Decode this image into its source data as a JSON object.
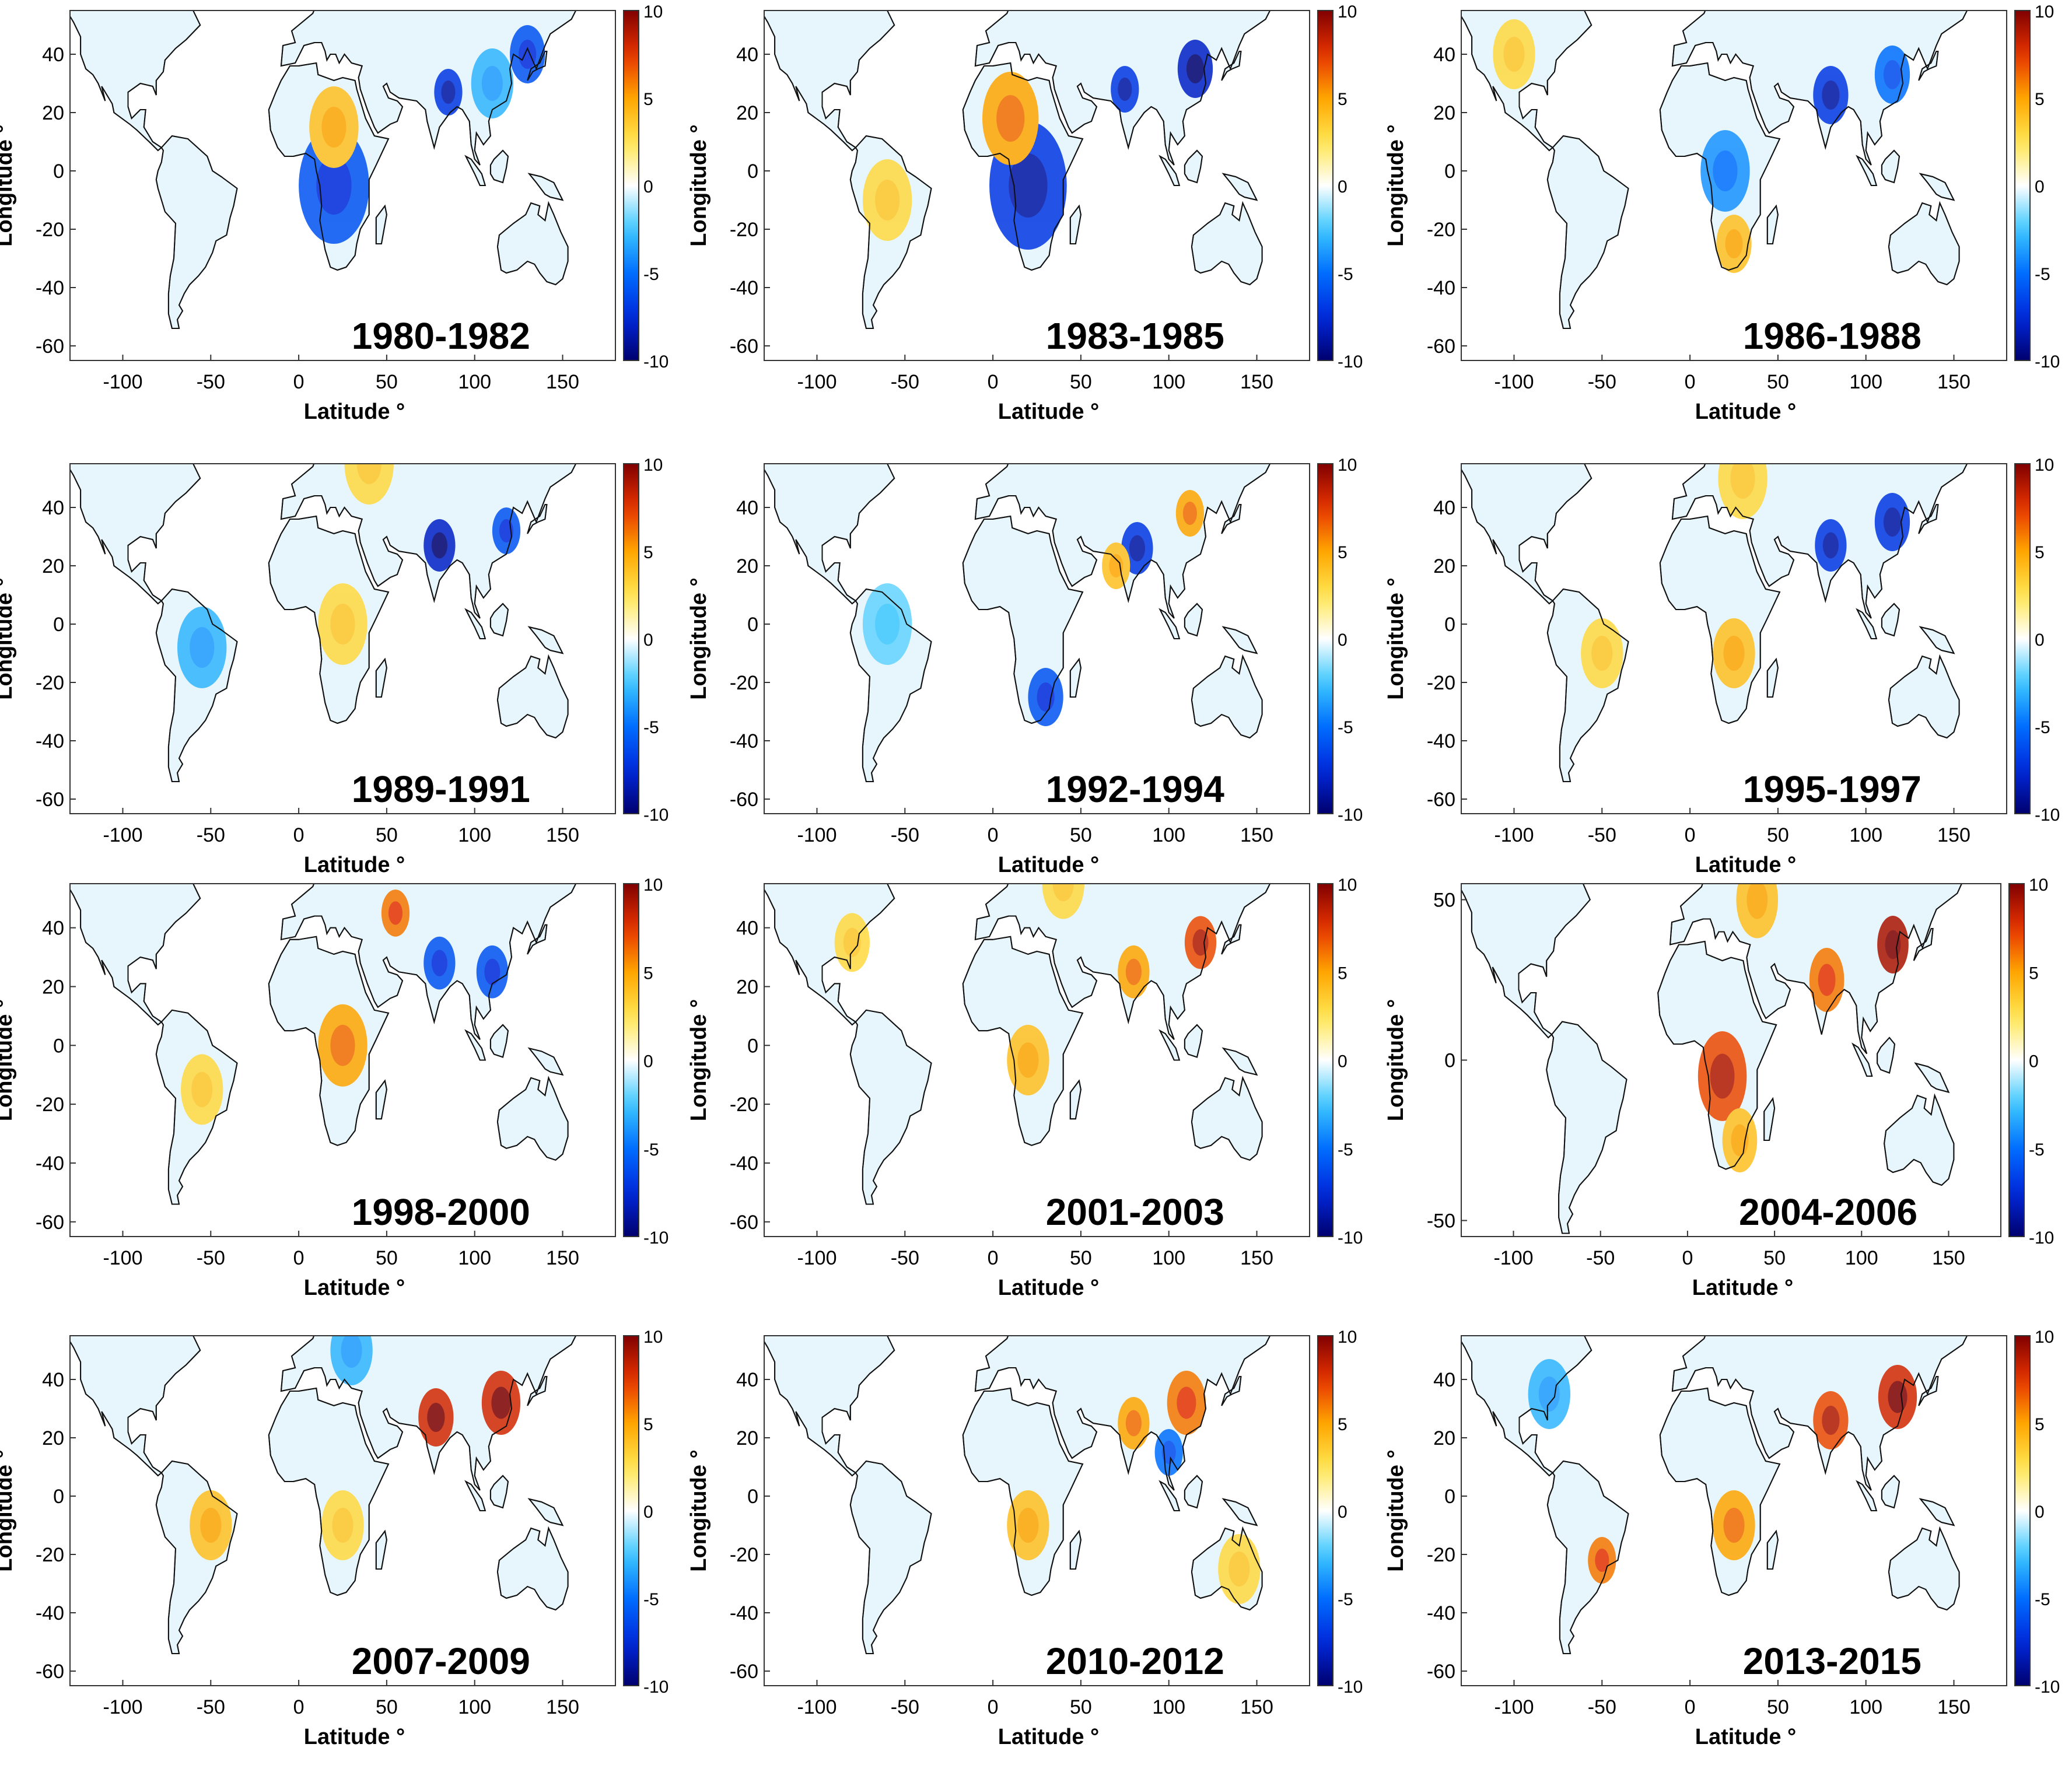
{
  "figure": {
    "xlabel": "Latitude °",
    "ylabel": "Longitude °"
  },
  "chart_data": [
    {
      "type": "heatmap",
      "title": "1980-1982",
      "xlabel": "Latitude °",
      "ylabel": "Longitude °",
      "xlim": [
        -130,
        180
      ],
      "ylim": [
        -65,
        55
      ],
      "xticks": [
        -100,
        -50,
        0,
        50,
        100,
        150
      ],
      "yticks": [
        40,
        20,
        0,
        -20,
        -40,
        -60
      ],
      "colorbar": {
        "min": -10,
        "max": 10,
        "ticks": [
          10,
          5,
          0,
          -5,
          -10
        ]
      },
      "hotspots": [
        {
          "lon": 20,
          "lat": -5,
          "r": 20,
          "v": -6
        },
        {
          "lon": 85,
          "lat": 27,
          "r": 8,
          "v": -7
        },
        {
          "lon": 130,
          "lat": 40,
          "r": 10,
          "v": -6
        },
        {
          "lon": 20,
          "lat": 15,
          "r": 14,
          "v": 4
        },
        {
          "lon": 110,
          "lat": 30,
          "r": 12,
          "v": -3
        }
      ]
    },
    {
      "type": "heatmap",
      "title": "1983-1985",
      "xlabel": "Latitude °",
      "ylabel": "Longitude °",
      "xlim": [
        -130,
        180
      ],
      "ylim": [
        -65,
        55
      ],
      "xticks": [
        -100,
        -50,
        0,
        50,
        100,
        150
      ],
      "yticks": [
        40,
        20,
        0,
        -20,
        -40,
        -60
      ],
      "colorbar": {
        "min": -10,
        "max": 10,
        "ticks": [
          10,
          5,
          0,
          -5,
          -10
        ]
      },
      "hotspots": [
        {
          "lon": 20,
          "lat": -5,
          "r": 22,
          "v": -7
        },
        {
          "lon": 115,
          "lat": 35,
          "r": 10,
          "v": -8
        },
        {
          "lon": 75,
          "lat": 28,
          "r": 8,
          "v": -7
        },
        {
          "lon": 10,
          "lat": 18,
          "r": 16,
          "v": 5
        },
        {
          "lon": -60,
          "lat": -10,
          "r": 14,
          "v": 3
        }
      ]
    },
    {
      "type": "heatmap",
      "title": "1986-1988",
      "xlabel": "Latitude °",
      "ylabel": "Longitude °",
      "xlim": [
        -130,
        180
      ],
      "ylim": [
        -65,
        55
      ],
      "xticks": [
        -100,
        -50,
        0,
        50,
        100,
        150
      ],
      "yticks": [
        40,
        20,
        0,
        -20,
        -40,
        -60
      ],
      "colorbar": {
        "min": -10,
        "max": 10,
        "ticks": [
          10,
          5,
          0,
          -5,
          -10
        ]
      },
      "hotspots": [
        {
          "lon": 80,
          "lat": 26,
          "r": 10,
          "v": -7
        },
        {
          "lon": 115,
          "lat": 33,
          "r": 10,
          "v": -5
        },
        {
          "lon": 25,
          "lat": -25,
          "r": 10,
          "v": 4
        },
        {
          "lon": 20,
          "lat": 0,
          "r": 14,
          "v": -4
        },
        {
          "lon": -100,
          "lat": 40,
          "r": 12,
          "v": 3
        }
      ]
    },
    {
      "type": "heatmap",
      "title": "1989-1991",
      "xlabel": "Latitude °",
      "ylabel": "Longitude °",
      "xlim": [
        -130,
        180
      ],
      "ylim": [
        -65,
        55
      ],
      "xticks": [
        -100,
        -50,
        0,
        50,
        100,
        150
      ],
      "yticks": [
        40,
        20,
        0,
        -20,
        -40,
        -60
      ],
      "colorbar": {
        "min": -10,
        "max": 10,
        "ticks": [
          10,
          5,
          0,
          -5,
          -10
        ]
      },
      "hotspots": [
        {
          "lon": 80,
          "lat": 27,
          "r": 9,
          "v": -8
        },
        {
          "lon": 118,
          "lat": 32,
          "r": 8,
          "v": -6
        },
        {
          "lon": 25,
          "lat": 0,
          "r": 14,
          "v": 3
        },
        {
          "lon": -55,
          "lat": -8,
          "r": 14,
          "v": -3
        },
        {
          "lon": 40,
          "lat": 55,
          "r": 14,
          "v": 3
        }
      ]
    },
    {
      "type": "heatmap",
      "title": "1992-1994",
      "xlabel": "Latitude °",
      "ylabel": "Longitude °",
      "xlim": [
        -130,
        180
      ],
      "ylim": [
        -65,
        55
      ],
      "xticks": [
        -100,
        -50,
        0,
        50,
        100,
        150
      ],
      "yticks": [
        40,
        20,
        0,
        -20,
        -40,
        -60
      ],
      "colorbar": {
        "min": -10,
        "max": 10,
        "ticks": [
          10,
          5,
          0,
          -5,
          -10
        ]
      },
      "hotspots": [
        {
          "lon": 82,
          "lat": 26,
          "r": 9,
          "v": -7
        },
        {
          "lon": 30,
          "lat": -25,
          "r": 10,
          "v": -6
        },
        {
          "lon": 112,
          "lat": 38,
          "r": 8,
          "v": 5
        },
        {
          "lon": 70,
          "lat": 20,
          "r": 8,
          "v": 4
        },
        {
          "lon": -60,
          "lat": 0,
          "r": 14,
          "v": -2
        }
      ]
    },
    {
      "type": "heatmap",
      "title": "1995-1997",
      "xlabel": "Latitude °",
      "ylabel": "Longitude °",
      "xlim": [
        -130,
        180
      ],
      "ylim": [
        -65,
        55
      ],
      "xticks": [
        -100,
        -50,
        0,
        50,
        100,
        150
      ],
      "yticks": [
        40,
        20,
        0,
        -20,
        -40,
        -60
      ],
      "colorbar": {
        "min": -10,
        "max": 10,
        "ticks": [
          10,
          5,
          0,
          -5,
          -10
        ]
      },
      "hotspots": [
        {
          "lon": 80,
          "lat": 27,
          "r": 9,
          "v": -7
        },
        {
          "lon": 115,
          "lat": 35,
          "r": 10,
          "v": -7
        },
        {
          "lon": 25,
          "lat": -10,
          "r": 12,
          "v": 4
        },
        {
          "lon": -50,
          "lat": -10,
          "r": 12,
          "v": 3
        },
        {
          "lon": 30,
          "lat": 50,
          "r": 14,
          "v": 3
        }
      ]
    },
    {
      "type": "heatmap",
      "title": "1998-2000",
      "xlabel": "Latitude °",
      "ylabel": "Longitude °",
      "xlim": [
        -130,
        180
      ],
      "ylim": [
        -65,
        55
      ],
      "xticks": [
        -100,
        -50,
        0,
        50,
        100,
        150
      ],
      "yticks": [
        40,
        20,
        0,
        -20,
        -40,
        -60
      ],
      "colorbar": {
        "min": -10,
        "max": 10,
        "ticks": [
          10,
          5,
          0,
          -5,
          -10
        ]
      },
      "hotspots": [
        {
          "lon": 25,
          "lat": 0,
          "r": 14,
          "v": 5
        },
        {
          "lon": 80,
          "lat": 28,
          "r": 9,
          "v": -6
        },
        {
          "lon": 110,
          "lat": 25,
          "r": 9,
          "v": -6
        },
        {
          "lon": 55,
          "lat": 45,
          "r": 8,
          "v": 6
        },
        {
          "lon": -55,
          "lat": -15,
          "r": 12,
          "v": 3
        }
      ]
    },
    {
      "type": "heatmap",
      "title": "2001-2003",
      "xlabel": "Latitude °",
      "ylabel": "Longitude °",
      "xlim": [
        -130,
        180
      ],
      "ylim": [
        -65,
        55
      ],
      "xticks": [
        -100,
        -50,
        0,
        50,
        100,
        150
      ],
      "yticks": [
        40,
        20,
        0,
        -20,
        -40,
        -60
      ],
      "colorbar": {
        "min": -10,
        "max": 10,
        "ticks": [
          10,
          5,
          0,
          -5,
          -10
        ]
      },
      "hotspots": [
        {
          "lon": 118,
          "lat": 35,
          "r": 9,
          "v": 7
        },
        {
          "lon": 80,
          "lat": 25,
          "r": 9,
          "v": 5
        },
        {
          "lon": 20,
          "lat": -5,
          "r": 12,
          "v": 4
        },
        {
          "lon": -80,
          "lat": 35,
          "r": 10,
          "v": 3
        },
        {
          "lon": 40,
          "lat": 55,
          "r": 12,
          "v": 3
        }
      ]
    },
    {
      "type": "heatmap",
      "title": "2004-2006",
      "xlabel": "Latitude °",
      "ylabel": "Longitude °",
      "xlim": [
        -130,
        180
      ],
      "ylim": [
        -55,
        55
      ],
      "xticks": [
        -100,
        -50,
        0,
        50,
        100,
        150
      ],
      "yticks": [
        50,
        0,
        -50
      ],
      "colorbar": {
        "min": -10,
        "max": 10,
        "ticks": [
          10,
          5,
          0,
          -5,
          -10
        ]
      },
      "hotspots": [
        {
          "lon": 118,
          "lat": 36,
          "r": 9,
          "v": 9
        },
        {
          "lon": 80,
          "lat": 25,
          "r": 10,
          "v": 6
        },
        {
          "lon": 20,
          "lat": -5,
          "r": 14,
          "v": 7
        },
        {
          "lon": 40,
          "lat": 50,
          "r": 12,
          "v": 4
        },
        {
          "lon": 30,
          "lat": -25,
          "r": 10,
          "v": 4
        }
      ]
    },
    {
      "type": "heatmap",
      "title": "2007-2009",
      "xlabel": "Latitude °",
      "ylabel": "Longitude °",
      "xlim": [
        -130,
        180
      ],
      "ylim": [
        -65,
        55
      ],
      "xticks": [
        -100,
        -50,
        0,
        50,
        100,
        150
      ],
      "yticks": [
        40,
        20,
        0,
        -20,
        -40,
        -60
      ],
      "colorbar": {
        "min": -10,
        "max": 10,
        "ticks": [
          10,
          5,
          0,
          -5,
          -10
        ]
      },
      "hotspots": [
        {
          "lon": 78,
          "lat": 27,
          "r": 10,
          "v": 8
        },
        {
          "lon": 115,
          "lat": 32,
          "r": 11,
          "v": 8
        },
        {
          "lon": -50,
          "lat": -10,
          "r": 12,
          "v": 4
        },
        {
          "lon": 25,
          "lat": -10,
          "r": 12,
          "v": 3
        },
        {
          "lon": 30,
          "lat": 50,
          "r": 12,
          "v": -3
        }
      ]
    },
    {
      "type": "heatmap",
      "title": "2010-2012",
      "xlabel": "Latitude °",
      "ylabel": "Longitude °",
      "xlim": [
        -130,
        180
      ],
      "ylim": [
        -65,
        55
      ],
      "xticks": [
        -100,
        -50,
        0,
        50,
        100,
        150
      ],
      "yticks": [
        40,
        20,
        0,
        -20,
        -40,
        -60
      ],
      "colorbar": {
        "min": -10,
        "max": 10,
        "ticks": [
          10,
          5,
          0,
          -5,
          -10
        ]
      },
      "hotspots": [
        {
          "lon": 110,
          "lat": 32,
          "r": 11,
          "v": 6
        },
        {
          "lon": 80,
          "lat": 25,
          "r": 9,
          "v": 5
        },
        {
          "lon": 100,
          "lat": 15,
          "r": 8,
          "v": -5
        },
        {
          "lon": 20,
          "lat": -10,
          "r": 12,
          "v": 4
        },
        {
          "lon": 140,
          "lat": -25,
          "r": 12,
          "v": 3
        }
      ]
    },
    {
      "type": "heatmap",
      "title": "2013-2015",
      "xlabel": "Latitude °",
      "ylabel": "Longitude °",
      "xlim": [
        -130,
        180
      ],
      "ylim": [
        -65,
        55
      ],
      "xticks": [
        -100,
        -50,
        0,
        50,
        100,
        150
      ],
      "yticks": [
        40,
        20,
        0,
        -20,
        -40,
        -60
      ],
      "colorbar": {
        "min": -10,
        "max": 10,
        "ticks": [
          10,
          5,
          0,
          -5,
          -10
        ]
      },
      "hotspots": [
        {
          "lon": 80,
          "lat": 26,
          "r": 10,
          "v": 7
        },
        {
          "lon": 118,
          "lat": 34,
          "r": 11,
          "v": 8
        },
        {
          "lon": -50,
          "lat": -22,
          "r": 8,
          "v": 6
        },
        {
          "lon": 25,
          "lat": -10,
          "r": 12,
          "v": 5
        },
        {
          "lon": -80,
          "lat": 35,
          "r": 12,
          "v": -3
        }
      ]
    }
  ]
}
